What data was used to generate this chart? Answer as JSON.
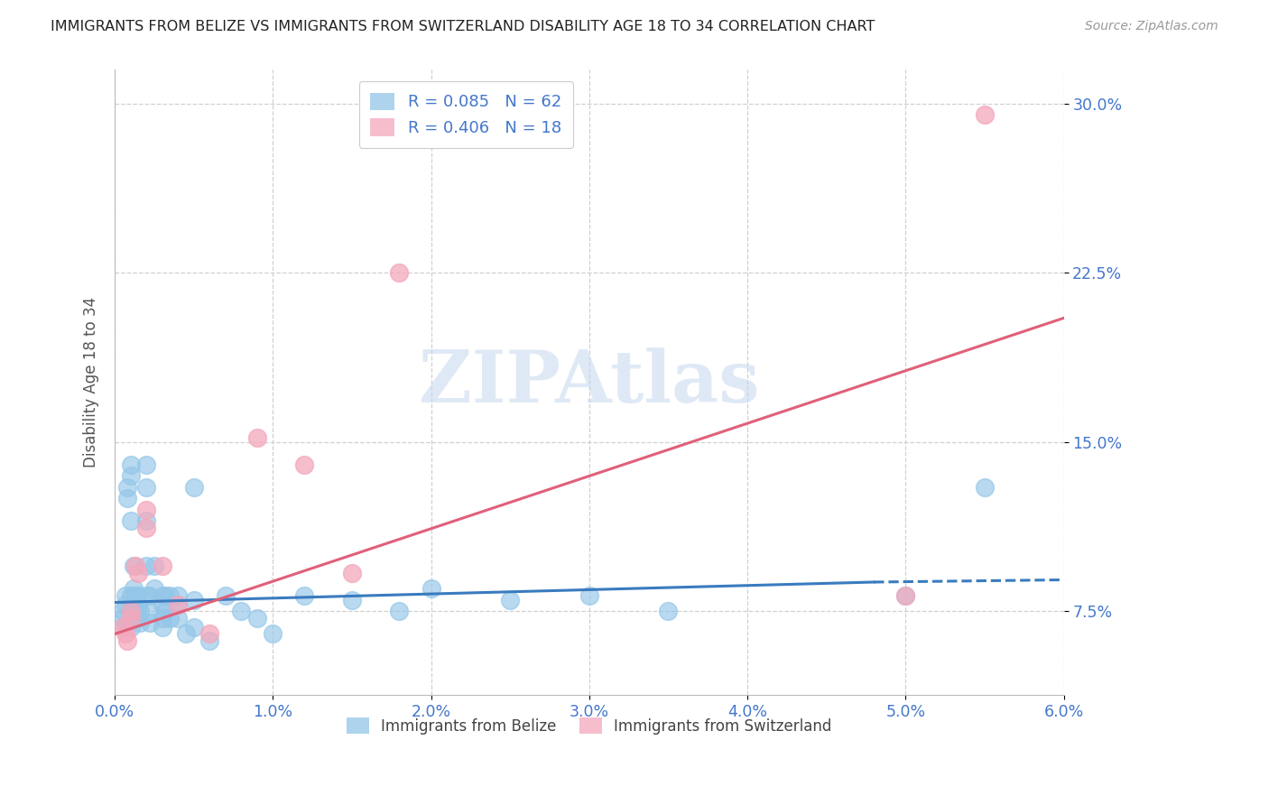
{
  "title": "IMMIGRANTS FROM BELIZE VS IMMIGRANTS FROM SWITZERLAND DISABILITY AGE 18 TO 34 CORRELATION CHART",
  "source": "Source: ZipAtlas.com",
  "ylabel": "Disability Age 18 to 34",
  "xlim": [
    0.0,
    0.06
  ],
  "ylim": [
    0.038,
    0.315
  ],
  "yticks": [
    0.075,
    0.15,
    0.225,
    0.3
  ],
  "ytick_labels": [
    "7.5%",
    "15.0%",
    "22.5%",
    "30.0%"
  ],
  "xticks": [
    0.0,
    0.01,
    0.02,
    0.03,
    0.04,
    0.05,
    0.06
  ],
  "xtick_labels": [
    "0.0%",
    "1.0%",
    "2.0%",
    "3.0%",
    "4.0%",
    "5.0%",
    "6.0%"
  ],
  "color_belize": "#93c6e8",
  "color_switzerland": "#f4a8bc",
  "trendline_belize_color": "#3a7bbf",
  "trendline_switzerland_color": "#e0607a",
  "watermark_text": "ZIPAtlas",
  "watermark_color": "#c5d8ef",
  "belize_x": [
    0.0005,
    0.0005,
    0.0005,
    0.0007,
    0.0007,
    0.0008,
    0.0008,
    0.001,
    0.001,
    0.001,
    0.001,
    0.001,
    0.001,
    0.0012,
    0.0012,
    0.0013,
    0.0013,
    0.0014,
    0.0014,
    0.0015,
    0.0015,
    0.0016,
    0.0016,
    0.002,
    0.002,
    0.002,
    0.002,
    0.002,
    0.0022,
    0.0022,
    0.0022,
    0.0025,
    0.0025,
    0.003,
    0.003,
    0.003,
    0.003,
    0.0032,
    0.0032,
    0.0035,
    0.0035,
    0.004,
    0.004,
    0.004,
    0.0045,
    0.005,
    0.005,
    0.005,
    0.006,
    0.007,
    0.008,
    0.009,
    0.01,
    0.012,
    0.015,
    0.018,
    0.02,
    0.025,
    0.03,
    0.035,
    0.05,
    0.055
  ],
  "belize_y": [
    0.075,
    0.072,
    0.068,
    0.082,
    0.078,
    0.13,
    0.125,
    0.14,
    0.135,
    0.115,
    0.082,
    0.075,
    0.068,
    0.095,
    0.085,
    0.082,
    0.078,
    0.075,
    0.072,
    0.082,
    0.078,
    0.075,
    0.07,
    0.14,
    0.13,
    0.115,
    0.095,
    0.082,
    0.082,
    0.075,
    0.07,
    0.095,
    0.085,
    0.082,
    0.078,
    0.072,
    0.068,
    0.082,
    0.075,
    0.082,
    0.072,
    0.082,
    0.078,
    0.072,
    0.065,
    0.13,
    0.08,
    0.068,
    0.062,
    0.082,
    0.075,
    0.072,
    0.065,
    0.082,
    0.08,
    0.075,
    0.085,
    0.08,
    0.082,
    0.075,
    0.082,
    0.13
  ],
  "switzerland_x": [
    0.0005,
    0.0007,
    0.0008,
    0.001,
    0.001,
    0.0013,
    0.0015,
    0.002,
    0.002,
    0.003,
    0.004,
    0.006,
    0.009,
    0.012,
    0.015,
    0.018,
    0.05,
    0.055
  ],
  "switzerland_y": [
    0.068,
    0.065,
    0.062,
    0.075,
    0.072,
    0.095,
    0.092,
    0.12,
    0.112,
    0.095,
    0.078,
    0.065,
    0.152,
    0.14,
    0.092,
    0.225,
    0.082,
    0.295
  ],
  "belize_trend_x": [
    0.0,
    0.048,
    0.06
  ],
  "belize_trend_y": [
    0.079,
    0.088,
    0.089
  ],
  "switzerland_trend_x": [
    0.0,
    0.06
  ],
  "switzerland_trend_y": [
    0.065,
    0.205
  ],
  "background_color": "#ffffff",
  "grid_color": "#d0d0d0",
  "axis_color": "#4477cc",
  "title_color": "#222222"
}
